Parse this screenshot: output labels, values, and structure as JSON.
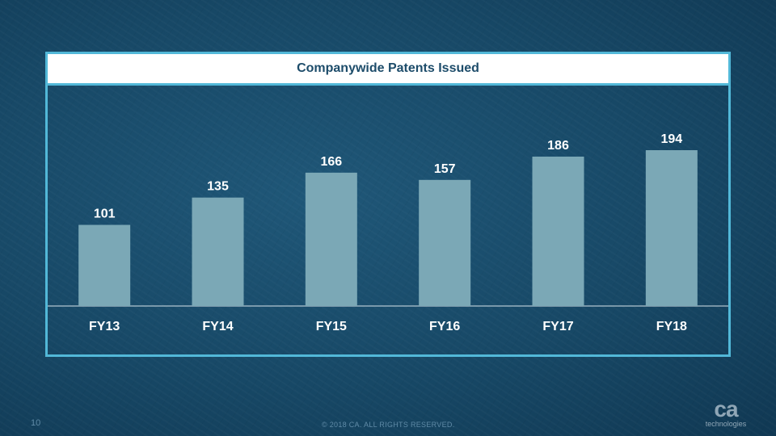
{
  "slide": {
    "page_number": "10",
    "copyright": "© 2018 CA. ALL RIGHTS RESERVED.",
    "logo": {
      "mark": "ca",
      "subtext": "technologies"
    }
  },
  "colors": {
    "background": "#174866",
    "frame": "#52b8d8",
    "bar": "#7ba8b6",
    "text": "#ffffff",
    "title_text": "#1d4c6a"
  },
  "chart_data": {
    "type": "bar",
    "title": "Companywide Patents Issued",
    "categories": [
      "FY13",
      "FY14",
      "FY15",
      "FY16",
      "FY17",
      "FY18"
    ],
    "values": [
      101,
      135,
      166,
      157,
      186,
      194
    ],
    "data_labels": true,
    "ylim": [
      0,
      194
    ],
    "grid": false,
    "legend": "none"
  }
}
